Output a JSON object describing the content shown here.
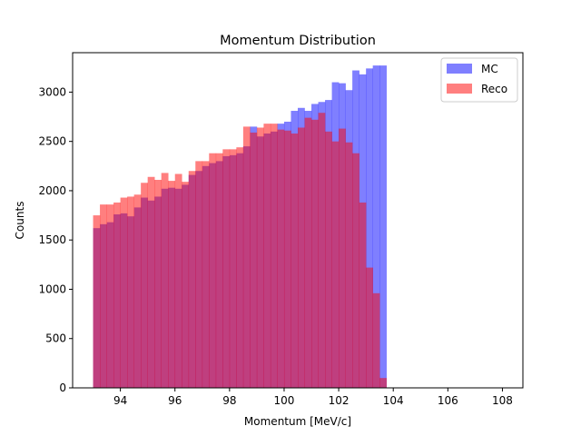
{
  "chart_data": {
    "type": "bar",
    "title": "Momentum Distribution",
    "xlabel": "Momentum [MeV/c]",
    "ylabel": "Counts",
    "xlim": [
      92.25,
      108.75
    ],
    "ylim": [
      0,
      3400
    ],
    "x_ticks": [
      94,
      96,
      98,
      100,
      102,
      104,
      106,
      108
    ],
    "y_ticks": [
      0,
      500,
      1000,
      1500,
      2000,
      2500,
      3000
    ],
    "grid": false,
    "legend_position": "top-right",
    "bin_start": 93.0,
    "bin_width": 0.25,
    "series": [
      {
        "name": "MC",
        "color": "#0000ff",
        "alpha": 0.5,
        "values": [
          1620,
          1660,
          1680,
          1760,
          1770,
          1740,
          1830,
          1930,
          1900,
          1940,
          2020,
          2030,
          2020,
          2060,
          2160,
          2200,
          2250,
          2280,
          2300,
          2350,
          2360,
          2380,
          2450,
          2650,
          2550,
          2580,
          2600,
          2680,
          2700,
          2810,
          2840,
          2810,
          2880,
          2900,
          2920,
          3100,
          3090,
          3020,
          3220,
          3180,
          3240,
          3270,
          3270,
          0,
          0,
          0,
          0,
          0,
          0,
          0,
          0,
          0,
          0,
          0,
          0,
          0,
          0,
          0,
          0,
          0
        ]
      },
      {
        "name": "Reco",
        "color": "#ff0000",
        "alpha": 0.5,
        "values": [
          1750,
          1860,
          1860,
          1880,
          1930,
          1940,
          1960,
          2080,
          2140,
          2110,
          2180,
          2100,
          2170,
          2090,
          2200,
          2300,
          2300,
          2380,
          2380,
          2420,
          2420,
          2440,
          2650,
          2590,
          2640,
          2680,
          2680,
          2620,
          2610,
          2580,
          2640,
          2740,
          2720,
          2790,
          2600,
          2500,
          2630,
          2490,
          2380,
          1880,
          1220,
          960,
          100,
          0,
          0,
          0,
          0,
          0,
          0,
          0,
          0,
          0,
          0,
          0,
          0,
          0,
          0,
          0,
          0,
          0
        ]
      }
    ]
  }
}
